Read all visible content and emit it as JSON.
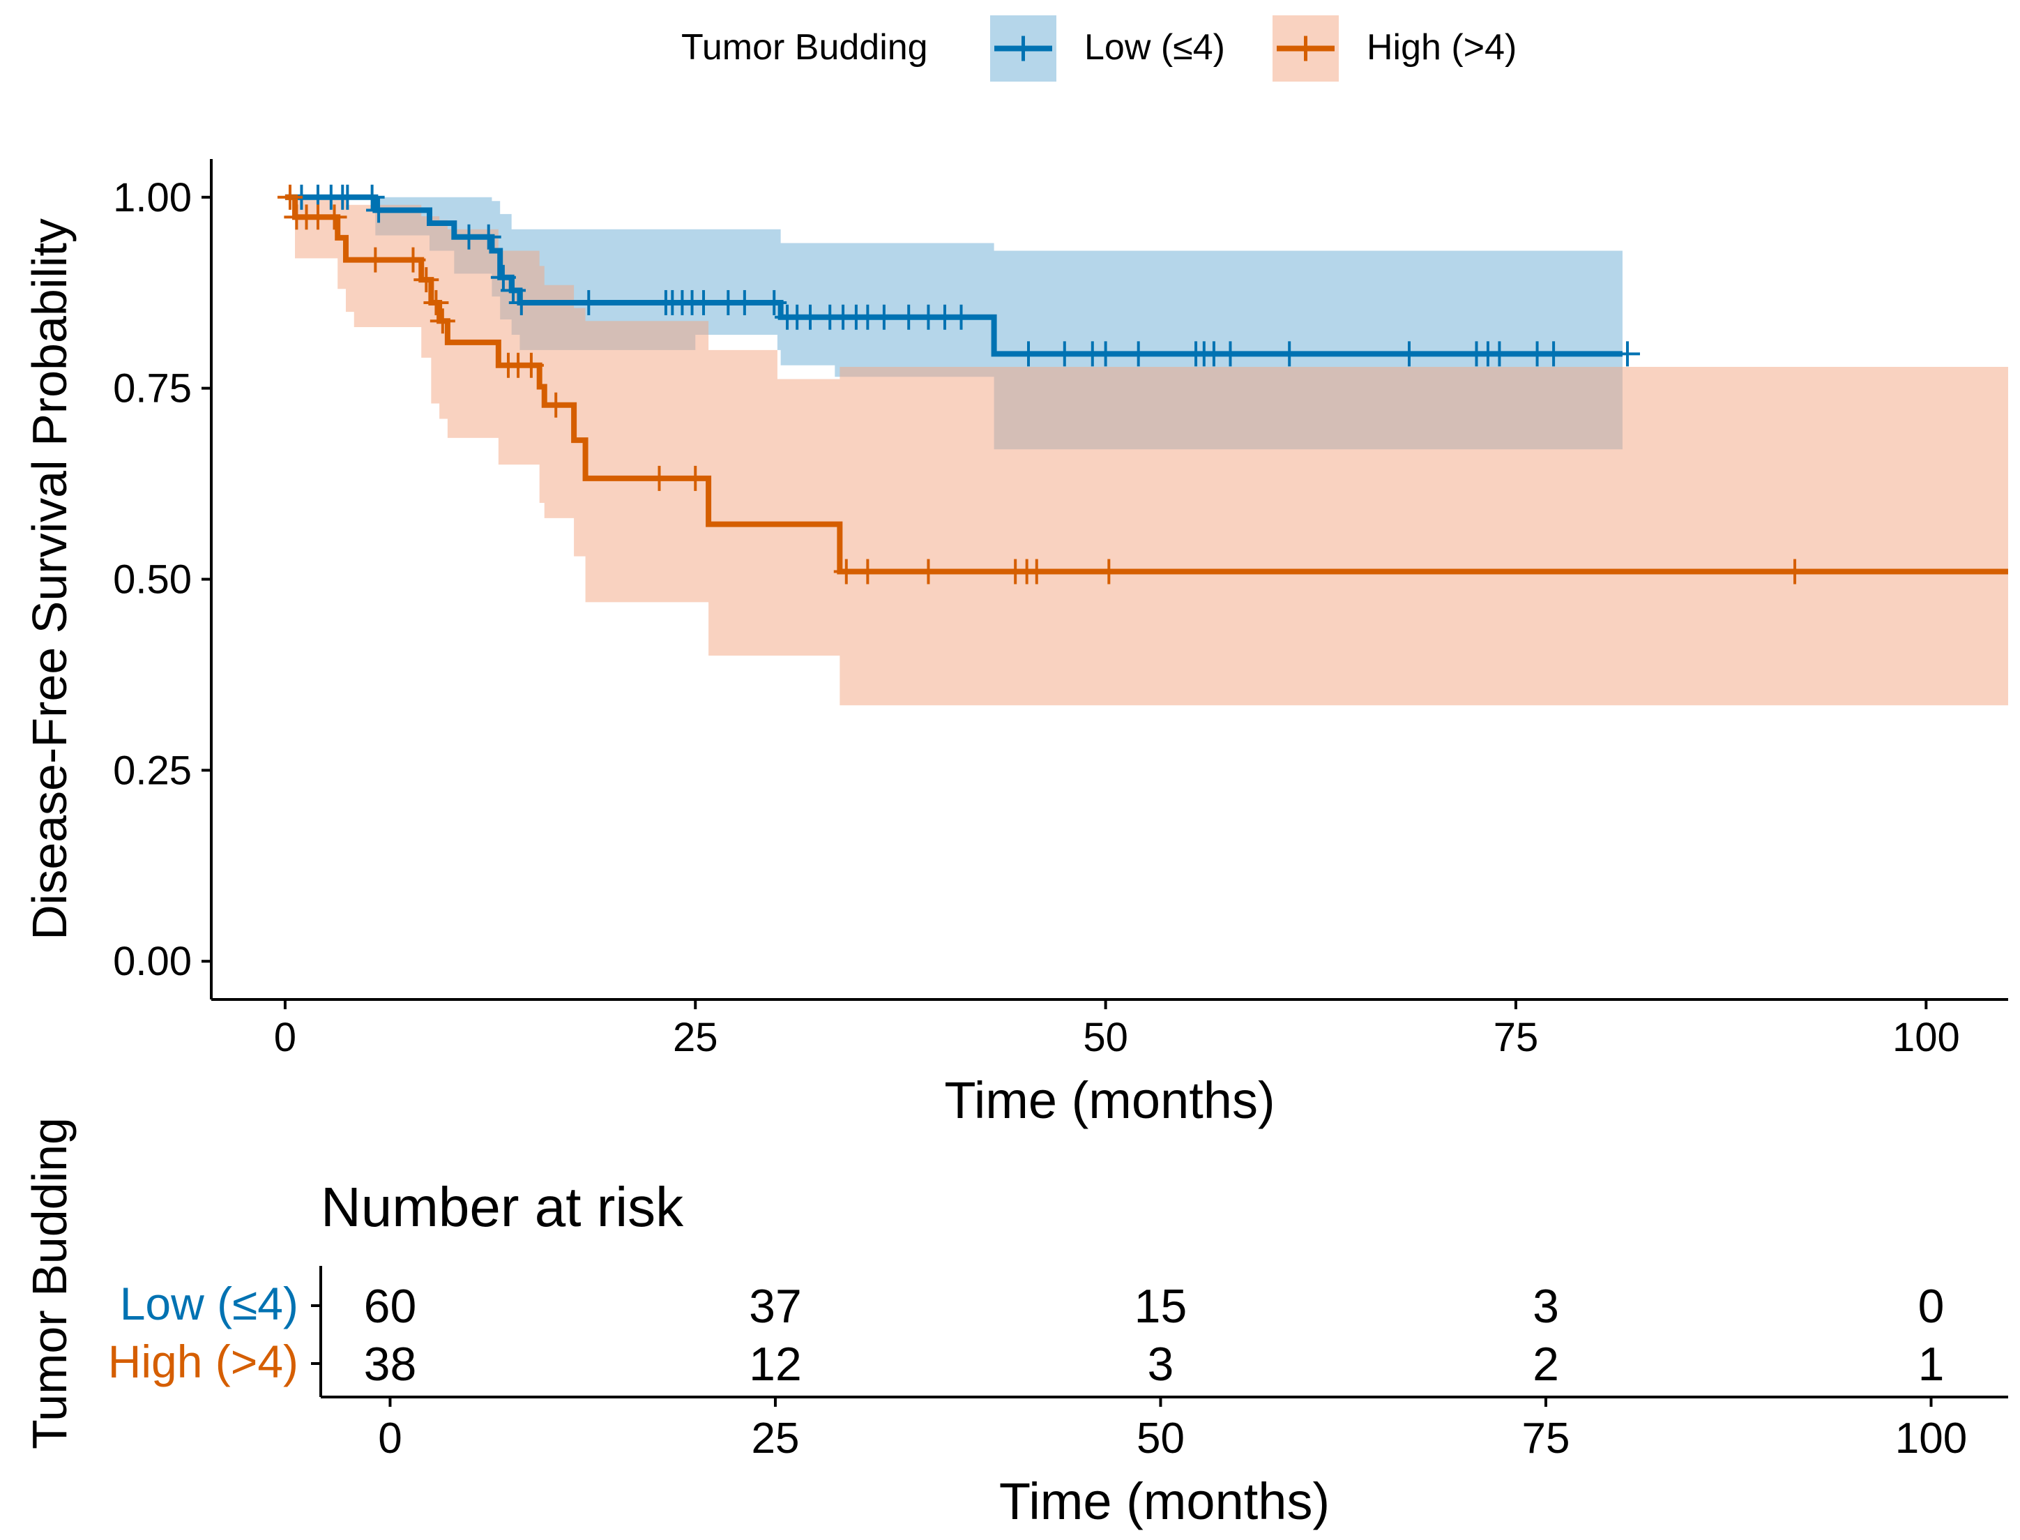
{
  "chart_data": [
    {
      "type": "line",
      "subtype": "kaplan-meier",
      "title": "",
      "xlabel": "Time (months)",
      "ylabel": "Disease-Free Survival Probability",
      "xlim": [
        -4.5,
        105
      ],
      "ylim": [
        -0.05,
        1.05
      ],
      "x_ticks": [
        0,
        25,
        50,
        75,
        100
      ],
      "x_tick_labels": [
        "0",
        "25",
        "50",
        "75",
        "100"
      ],
      "y_ticks": [
        0,
        0.25,
        0.5,
        0.75,
        1.0
      ],
      "y_tick_labels": [
        "0.00",
        "0.25",
        "0.50",
        "0.75",
        "1.00"
      ],
      "grid": false,
      "legend": {
        "title": "Tumor Budding",
        "position": "top",
        "entries": [
          "Low (≤4)",
          "High (>4)"
        ]
      },
      "series": [
        {
          "name": "Low (≤4)",
          "color": "#0072B2",
          "band_color": "#6BAED6",
          "steps": [
            [
              0,
              1.0
            ],
            [
              5.5,
              0.983
            ],
            [
              8.8,
              0.966
            ],
            [
              10.3,
              0.948
            ],
            [
              12.6,
              0.93
            ],
            [
              13.1,
              0.895
            ],
            [
              13.8,
              0.878
            ],
            [
              14.3,
              0.862
            ],
            [
              30.2,
              0.843
            ],
            [
              43.2,
              0.795
            ],
            [
              81.5,
              0.795
            ]
          ],
          "ci_steps": [
            [
              0,
              1.0,
              1.0
            ],
            [
              5.5,
              1.0,
              0.95
            ],
            [
              8.8,
              1.0,
              0.93
            ],
            [
              10.3,
              1.0,
              0.9
            ],
            [
              12.6,
              0.995,
              0.87
            ],
            [
              13.1,
              0.978,
              0.84
            ],
            [
              13.8,
              0.958,
              0.82
            ],
            [
              14.3,
              0.958,
              0.8
            ],
            [
              25.0,
              0.958,
              0.82
            ],
            [
              30.0,
              0.958,
              0.8
            ],
            [
              30.2,
              0.94,
              0.78
            ],
            [
              33.5,
              0.94,
              0.765
            ],
            [
              43.2,
              0.93,
              0.67
            ],
            [
              81.5,
              0.93,
              0.67
            ]
          ],
          "censor_times": [
            1.0,
            2.0,
            2.8,
            3.5,
            3.8,
            5.3,
            5.7,
            11.2,
            12.4,
            13.3,
            13.9,
            14.4,
            18.5,
            23.2,
            23.6,
            24.2,
            24.8,
            25.5,
            27.0,
            28.0,
            29.8,
            30.6,
            31.2,
            32.0,
            33.2,
            34.0,
            34.8,
            35.5,
            36.5,
            38.0,
            39.2,
            40.2,
            41.2,
            45.3,
            47.5,
            49.2,
            50.0,
            52.0,
            55.5,
            56.0,
            56.6,
            57.6,
            61.2,
            68.5,
            72.6,
            73.3,
            74.0,
            76.3,
            77.3,
            81.8
          ]
        },
        {
          "name": "High (>4)",
          "color": "#D55E00",
          "band_color": "#F4A582",
          "steps": [
            [
              0,
              1.0
            ],
            [
              0.6,
              0.974
            ],
            [
              3.2,
              0.947
            ],
            [
              3.7,
              0.918
            ],
            [
              8.3,
              0.892
            ],
            [
              8.9,
              0.862
            ],
            [
              9.4,
              0.838
            ],
            [
              9.9,
              0.81
            ],
            [
              13.0,
              0.78
            ],
            [
              15.5,
              0.752
            ],
            [
              15.8,
              0.728
            ],
            [
              17.6,
              0.682
            ],
            [
              18.3,
              0.632
            ],
            [
              25.8,
              0.572
            ],
            [
              33.8,
              0.51
            ],
            [
              105.0,
              0.51
            ]
          ],
          "ci_steps": [
            [
              0,
              1.0,
              1.0
            ],
            [
              0.6,
              1.0,
              0.92
            ],
            [
              3.2,
              1.0,
              0.88
            ],
            [
              3.7,
              0.99,
              0.85
            ],
            [
              4.2,
              0.99,
              0.83
            ],
            [
              8.3,
              0.975,
              0.79
            ],
            [
              8.9,
              0.975,
              0.73
            ],
            [
              9.4,
              0.97,
              0.71
            ],
            [
              9.9,
              0.958,
              0.685
            ],
            [
              13.0,
              0.93,
              0.65
            ],
            [
              15.5,
              0.91,
              0.6
            ],
            [
              15.8,
              0.885,
              0.58
            ],
            [
              17.6,
              0.855,
              0.53
            ],
            [
              18.3,
              0.838,
              0.47
            ],
            [
              25.8,
              0.8,
              0.4
            ],
            [
              30.0,
              0.762,
              0.4
            ],
            [
              33.8,
              0.778,
              0.335
            ],
            [
              105.0,
              0.778,
              0.335
            ]
          ],
          "censor_times": [
            0.3,
            0.7,
            1.3,
            2.0,
            3.0,
            5.5,
            7.8,
            8.6,
            9.2,
            9.6,
            13.6,
            14.2,
            15.0,
            16.5,
            22.8,
            25.0,
            34.2,
            35.5,
            39.2,
            44.5,
            45.2,
            45.8,
            50.2,
            92.0
          ]
        }
      ]
    },
    {
      "type": "table",
      "title": "Number at risk",
      "ylabel": "Tumor Budding",
      "xlabel": "Time (months)",
      "xlim": [
        -4.5,
        105
      ],
      "x_ticks": [
        0,
        25,
        50,
        75,
        100
      ],
      "x_tick_labels": [
        "0",
        "25",
        "50",
        "75",
        "100"
      ],
      "rows": [
        {
          "label": "Low (≤4)",
          "color": "#0072B2",
          "values": [
            "60",
            "37",
            "15",
            "3",
            "0"
          ]
        },
        {
          "label": "High (>4)",
          "color": "#D55E00",
          "values": [
            "38",
            "12",
            "3",
            "2",
            "1"
          ]
        }
      ]
    }
  ]
}
